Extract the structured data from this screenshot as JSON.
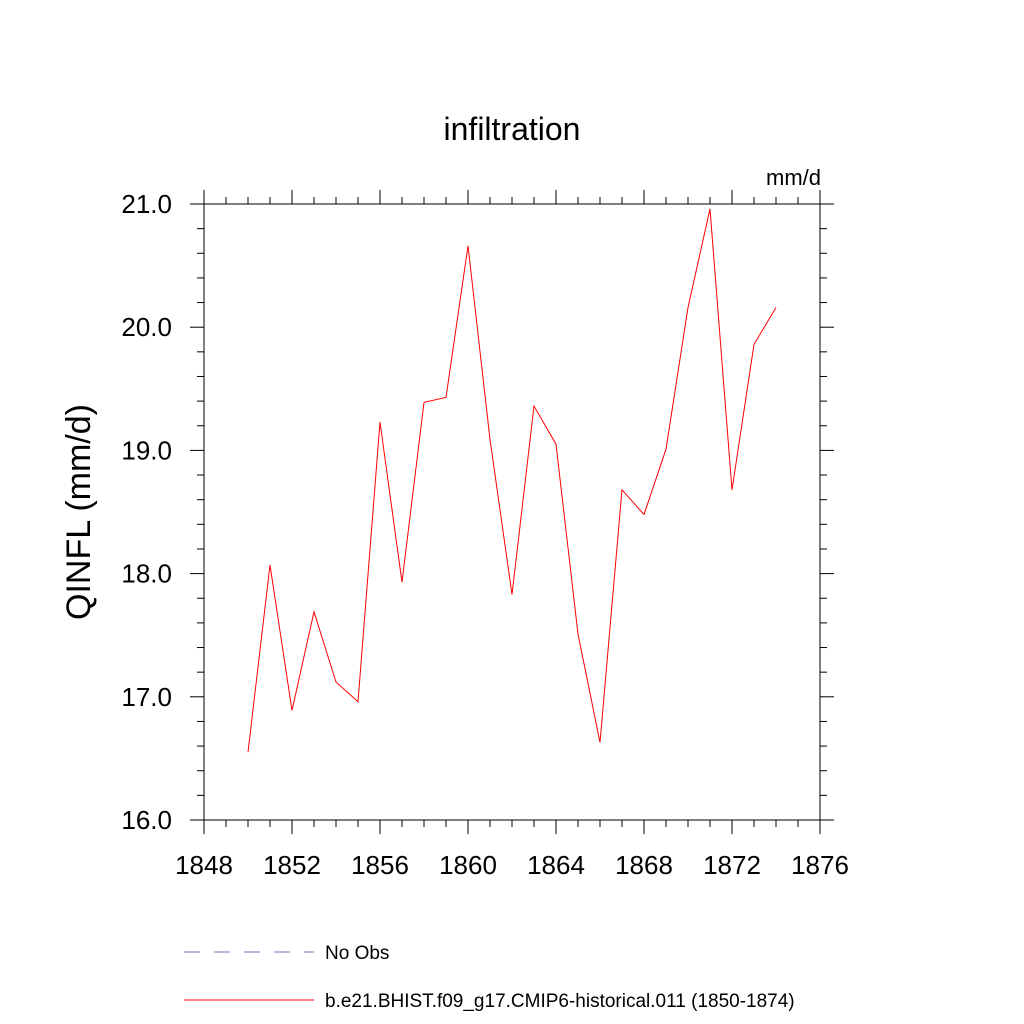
{
  "chart_data": {
    "type": "line",
    "title": "infiltration",
    "units": "mm/d",
    "xlabel": "",
    "ylabel": "QINFL  (mm/d)",
    "xlim": [
      1848,
      1876
    ],
    "ylim": [
      16.0,
      21.0
    ],
    "xticks": [
      1848,
      1852,
      1856,
      1860,
      1864,
      1868,
      1872,
      1876
    ],
    "yticks": [
      16.0,
      17.0,
      18.0,
      19.0,
      20.0,
      21.0
    ],
    "ytick_labels": [
      "16.0",
      "17.0",
      "18.0",
      "19.0",
      "20.0",
      "21.0"
    ],
    "grid": false,
    "series": [
      {
        "name": "b.e21.BHIST.f09_g17.CMIP6-historical.011 (1850-1874)",
        "color": "#ff0000",
        "dash": "solid",
        "x": [
          1850,
          1851,
          1852,
          1853,
          1854,
          1855,
          1856,
          1857,
          1858,
          1859,
          1860,
          1861,
          1862,
          1863,
          1864,
          1865,
          1866,
          1867,
          1868,
          1869,
          1870,
          1871,
          1872,
          1873,
          1874
        ],
        "y": [
          16.55,
          18.07,
          16.89,
          17.69,
          17.12,
          16.96,
          19.23,
          17.93,
          19.39,
          19.43,
          20.66,
          19.09,
          17.83,
          19.36,
          19.05,
          17.51,
          16.63,
          18.68,
          18.48,
          19.01,
          20.16,
          20.96,
          18.68,
          19.86,
          20.16
        ]
      }
    ],
    "legend": {
      "placement": "bottom",
      "entries": [
        {
          "label": "No Obs",
          "color": "#7070c0",
          "dash": "dashed"
        },
        {
          "label": "b.e21.BHIST.f09_g17.CMIP6-historical.011 (1850-1874)",
          "color": "#ff0000",
          "dash": "solid"
        }
      ]
    }
  }
}
